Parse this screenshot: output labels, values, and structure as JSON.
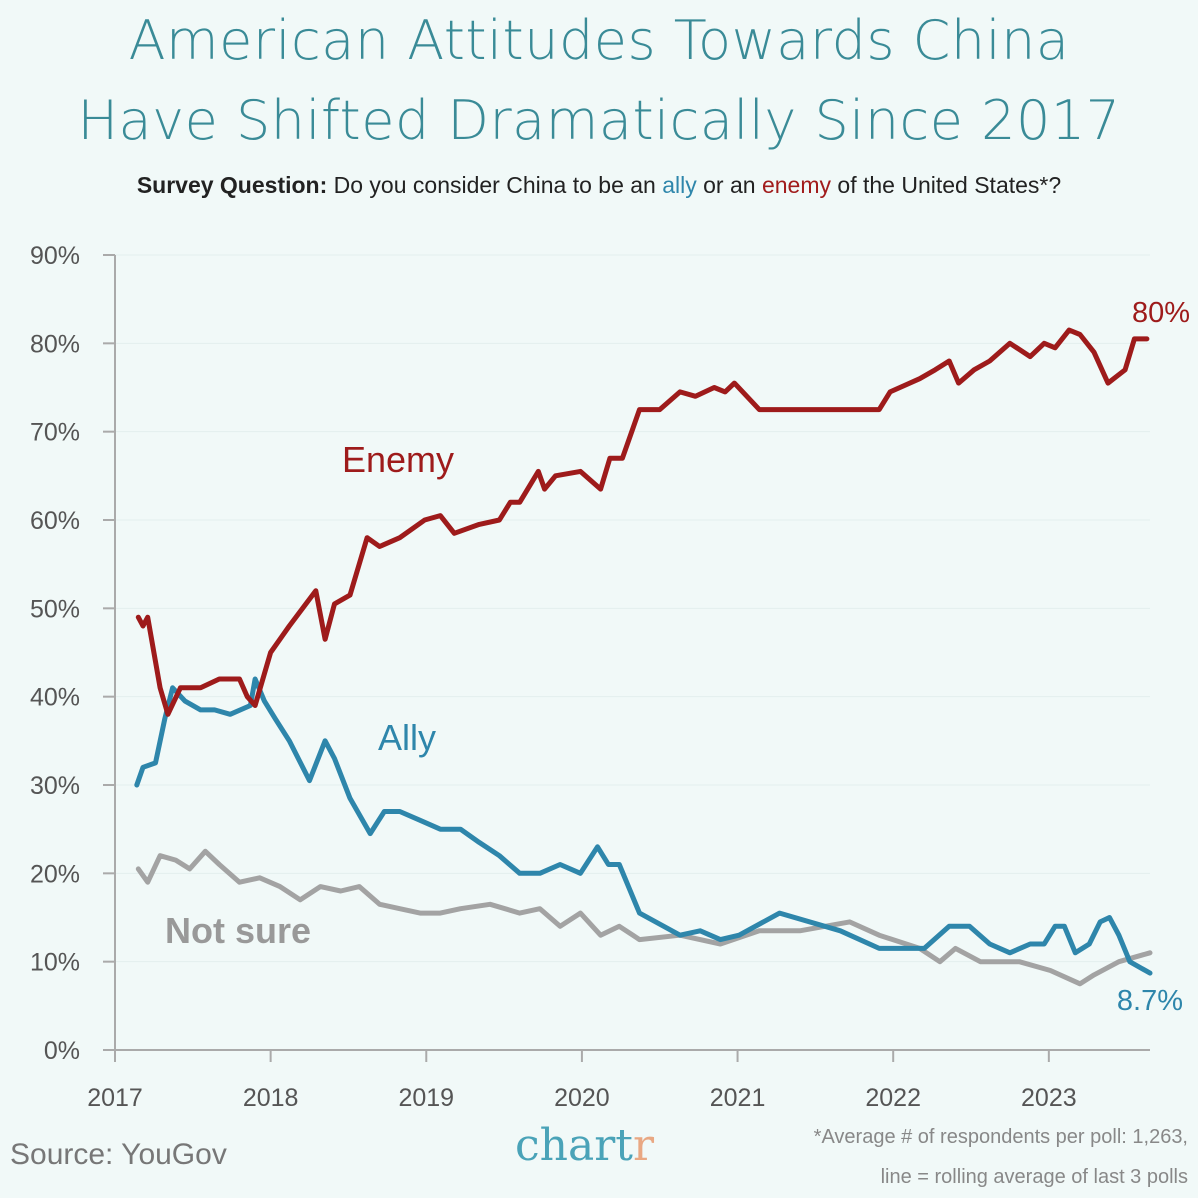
{
  "header": {
    "title_line1": "American Attitudes Towards China",
    "title_line2": "Have Shifted Dramatically Since 2017",
    "subtitle_bold": "Survey Question:",
    "subtitle_pre": " Do you consider China to be an ",
    "subtitle_ally": "ally",
    "subtitle_mid": " or an ",
    "subtitle_enemy": "enemy",
    "subtitle_post": " of the United States*?"
  },
  "footer": {
    "source": "Source: YouGov",
    "logo_main": "chart",
    "logo_accent": "r",
    "note_line1": "*Average # of respondents per poll: 1,263,",
    "note_line2": "line = rolling average of last 3 polls"
  },
  "colors": {
    "enemy": "#9e1b1b",
    "ally": "#2e86ab",
    "not_sure": "#a3a3a3",
    "title": "#3a8b97",
    "background": "#f1f9f8"
  },
  "chart_data": {
    "type": "line",
    "xlim": [
      2017,
      2023.65
    ],
    "ylim": [
      0,
      90
    ],
    "x_ticks": [
      "2017",
      "2018",
      "2019",
      "2020",
      "2021",
      "2022",
      "2023"
    ],
    "y_ticks": [
      "0%",
      "10%",
      "20%",
      "30%",
      "40%",
      "50%",
      "60%",
      "70%",
      "80%",
      "90%"
    ],
    "grid": true,
    "series": [
      {
        "name": "Enemy",
        "end_label": "80%",
        "points": [
          [
            2017.15,
            49
          ],
          [
            2017.18,
            48
          ],
          [
            2017.21,
            49
          ],
          [
            2017.29,
            41
          ],
          [
            2017.34,
            38
          ],
          [
            2017.42,
            41
          ],
          [
            2017.55,
            41
          ],
          [
            2017.67,
            42
          ],
          [
            2017.8,
            42
          ],
          [
            2017.85,
            40
          ],
          [
            2017.9,
            39
          ],
          [
            2018.0,
            45
          ],
          [
            2018.12,
            48
          ],
          [
            2018.29,
            52
          ],
          [
            2018.35,
            46.5
          ],
          [
            2018.41,
            50.5
          ],
          [
            2018.51,
            51.5
          ],
          [
            2018.62,
            58
          ],
          [
            2018.7,
            57
          ],
          [
            2018.83,
            58
          ],
          [
            2018.99,
            60
          ],
          [
            2019.09,
            60.5
          ],
          [
            2019.18,
            58.5
          ],
          [
            2019.34,
            59.5
          ],
          [
            2019.47,
            60
          ],
          [
            2019.54,
            62
          ],
          [
            2019.6,
            62
          ],
          [
            2019.72,
            65.5
          ],
          [
            2019.76,
            63.5
          ],
          [
            2019.83,
            65
          ],
          [
            2019.99,
            65.5
          ],
          [
            2020.12,
            63.5
          ],
          [
            2020.18,
            67
          ],
          [
            2020.26,
            67
          ],
          [
            2020.37,
            72.5
          ],
          [
            2020.5,
            72.5
          ],
          [
            2020.63,
            74.5
          ],
          [
            2020.73,
            74
          ],
          [
            2020.85,
            75
          ],
          [
            2020.92,
            74.5
          ],
          [
            2020.98,
            75.5
          ],
          [
            2021.14,
            72.5
          ],
          [
            2021.91,
            72.5
          ],
          [
            2021.98,
            74.5
          ],
          [
            2022.17,
            76
          ],
          [
            2022.27,
            77
          ],
          [
            2022.36,
            78
          ],
          [
            2022.42,
            75.5
          ],
          [
            2022.52,
            77
          ],
          [
            2022.62,
            78
          ],
          [
            2022.75,
            80
          ],
          [
            2022.88,
            78.5
          ],
          [
            2022.97,
            80
          ],
          [
            2023.04,
            79.5
          ],
          [
            2023.13,
            81.5
          ],
          [
            2023.2,
            81
          ],
          [
            2023.29,
            79
          ],
          [
            2023.38,
            75.5
          ],
          [
            2023.49,
            77
          ],
          [
            2023.55,
            80.5
          ],
          [
            2023.63,
            80.5
          ]
        ]
      },
      {
        "name": "Ally",
        "end_label": "8.7%",
        "points": [
          [
            2017.14,
            30
          ],
          [
            2017.18,
            32
          ],
          [
            2017.26,
            32.5
          ],
          [
            2017.32,
            37.5
          ],
          [
            2017.37,
            41
          ],
          [
            2017.45,
            39.5
          ],
          [
            2017.55,
            38.5
          ],
          [
            2017.64,
            38.5
          ],
          [
            2017.74,
            38
          ],
          [
            2017.87,
            39
          ],
          [
            2017.9,
            42
          ],
          [
            2017.96,
            39.5
          ],
          [
            2018.03,
            37.5
          ],
          [
            2018.12,
            35
          ],
          [
            2018.25,
            30.5
          ],
          [
            2018.35,
            35
          ],
          [
            2018.41,
            33
          ],
          [
            2018.51,
            28.5
          ],
          [
            2018.64,
            24.5
          ],
          [
            2018.73,
            27
          ],
          [
            2018.83,
            27
          ],
          [
            2018.96,
            26
          ],
          [
            2019.09,
            25
          ],
          [
            2019.22,
            25
          ],
          [
            2019.34,
            23.5
          ],
          [
            2019.47,
            22
          ],
          [
            2019.6,
            20
          ],
          [
            2019.73,
            20
          ],
          [
            2019.86,
            21
          ],
          [
            2019.99,
            20
          ],
          [
            2020.1,
            23
          ],
          [
            2020.17,
            21
          ],
          [
            2020.24,
            21
          ],
          [
            2020.37,
            15.5
          ],
          [
            2020.63,
            13
          ],
          [
            2020.76,
            13.5
          ],
          [
            2020.89,
            12.5
          ],
          [
            2021.01,
            13
          ],
          [
            2021.27,
            15.5
          ],
          [
            2021.66,
            13.5
          ],
          [
            2021.91,
            11.5
          ],
          [
            2022.2,
            11.5
          ],
          [
            2022.36,
            14
          ],
          [
            2022.49,
            14
          ],
          [
            2022.62,
            12
          ],
          [
            2022.75,
            11
          ],
          [
            2022.88,
            12
          ],
          [
            2022.97,
            12
          ],
          [
            2023.04,
            14
          ],
          [
            2023.1,
            14
          ],
          [
            2023.17,
            11
          ],
          [
            2023.26,
            12
          ],
          [
            2023.33,
            14.5
          ],
          [
            2023.39,
            15
          ],
          [
            2023.45,
            13
          ],
          [
            2023.52,
            10
          ],
          [
            2023.65,
            8.7
          ]
        ]
      },
      {
        "name": "Not sure",
        "points": [
          [
            2017.15,
            20.5
          ],
          [
            2017.21,
            19
          ],
          [
            2017.29,
            22
          ],
          [
            2017.39,
            21.5
          ],
          [
            2017.48,
            20.5
          ],
          [
            2017.58,
            22.5
          ],
          [
            2017.67,
            21
          ],
          [
            2017.8,
            19
          ],
          [
            2017.93,
            19.5
          ],
          [
            2018.06,
            18.5
          ],
          [
            2018.19,
            17
          ],
          [
            2018.32,
            18.5
          ],
          [
            2018.45,
            18
          ],
          [
            2018.57,
            18.5
          ],
          [
            2018.7,
            16.5
          ],
          [
            2018.83,
            16
          ],
          [
            2018.96,
            15.5
          ],
          [
            2019.09,
            15.5
          ],
          [
            2019.22,
            16
          ],
          [
            2019.41,
            16.5
          ],
          [
            2019.6,
            15.5
          ],
          [
            2019.73,
            16
          ],
          [
            2019.86,
            14
          ],
          [
            2019.99,
            15.5
          ],
          [
            2020.12,
            13
          ],
          [
            2020.24,
            14
          ],
          [
            2020.37,
            12.5
          ],
          [
            2020.63,
            13
          ],
          [
            2020.89,
            12
          ],
          [
            2021.14,
            13.5
          ],
          [
            2021.4,
            13.5
          ],
          [
            2021.72,
            14.5
          ],
          [
            2021.91,
            13
          ],
          [
            2022.17,
            11.5
          ],
          [
            2022.3,
            10
          ],
          [
            2022.4,
            11.5
          ],
          [
            2022.56,
            10
          ],
          [
            2022.81,
            10
          ],
          [
            2023.01,
            9
          ],
          [
            2023.2,
            7.5
          ],
          [
            2023.29,
            8.5
          ],
          [
            2023.45,
            10
          ],
          [
            2023.65,
            11
          ]
        ]
      }
    ]
  }
}
